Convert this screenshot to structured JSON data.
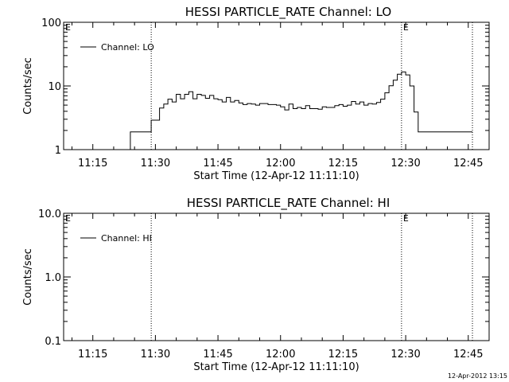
{
  "chart_data": [
    {
      "type": "line",
      "title": "HESSI PARTICLE_RATE Channel: LO",
      "xlabel": "Start Time (12-Apr-12 11:11:10)",
      "ylabel": "Counts/sec",
      "yscale": "log",
      "ylim": [
        1,
        100
      ],
      "xlim": [
        "11:08",
        "12:50"
      ],
      "x_ticks": [
        "11:15",
        "11:30",
        "11:45",
        "12:00",
        "12:15",
        "12:30",
        "12:45"
      ],
      "y_ticks": [
        "1",
        "10",
        "100"
      ],
      "grid": false,
      "legend_position": "top-left",
      "vlines": [
        "11:29",
        "12:29",
        "12:46"
      ],
      "vline_labels": [
        {
          "x": "11:08",
          "label": "E"
        },
        {
          "x": "12:29",
          "label": "E"
        }
      ],
      "series": [
        {
          "name": "Channel: LO",
          "x": [
            "11:24",
            "11:24",
            "11:25",
            "11:26",
            "11:27",
            "11:28",
            "11:29",
            "11:29",
            "11:30",
            "11:31",
            "11:32",
            "11:33",
            "11:34",
            "11:35",
            "11:36",
            "11:37",
            "11:38",
            "11:39",
            "11:40",
            "11:41",
            "11:42",
            "11:43",
            "11:44",
            "11:45",
            "11:46",
            "11:47",
            "11:48",
            "11:49",
            "11:50",
            "11:51",
            "11:52",
            "11:53",
            "11:54",
            "11:55",
            "11:56",
            "11:57",
            "11:58",
            "11:59",
            "12:00",
            "12:01",
            "12:02",
            "12:03",
            "12:04",
            "12:05",
            "12:06",
            "12:07",
            "12:08",
            "12:09",
            "12:10",
            "12:11",
            "12:12",
            "12:13",
            "12:14",
            "12:15",
            "12:16",
            "12:17",
            "12:18",
            "12:19",
            "12:20",
            "12:21",
            "12:22",
            "12:23",
            "12:24",
            "12:25",
            "12:26",
            "12:27",
            "12:28",
            "12:29",
            "12:30",
            "12:31",
            "12:32",
            "12:33",
            "12:34",
            "12:35",
            "12:36",
            "12:37",
            "12:38",
            "12:39",
            "12:40",
            "12:41",
            "12:42",
            "12:43",
            "12:44",
            "12:45",
            "12:46"
          ],
          "y": [
            1,
            1.9,
            1.9,
            1.9,
            1.9,
            1.9,
            1.9,
            2.9,
            2.9,
            4.5,
            5.2,
            6.2,
            5.6,
            7.4,
            6.3,
            7.4,
            8.1,
            6.3,
            7.4,
            7.1,
            6.4,
            7.1,
            6.3,
            6.1,
            5.6,
            6.6,
            5.6,
            5.9,
            5.4,
            5.1,
            5.3,
            5.2,
            5.0,
            5.3,
            5.3,
            5.1,
            5.1,
            5.0,
            4.7,
            4.2,
            5.2,
            4.4,
            4.6,
            4.4,
            4.9,
            4.4,
            4.4,
            4.3,
            4.7,
            4.6,
            4.6,
            4.9,
            5.1,
            4.8,
            5.0,
            5.7,
            5.2,
            5.6,
            5.0,
            5.3,
            5.2,
            5.5,
            6.2,
            7.8,
            10.1,
            12.3,
            15.3,
            16.6,
            14.9,
            10.0,
            3.9,
            1.9,
            1.9,
            1.9,
            1.9,
            1.9,
            1.9,
            1.9,
            1.9,
            1.9,
            1.9,
            1.9,
            1.9,
            1.9,
            1.9
          ]
        }
      ]
    },
    {
      "type": "line",
      "title": "HESSI PARTICLE_RATE Channel: HI",
      "xlabel": "Start Time (12-Apr-12 11:11:10)",
      "ylabel": "Counts/sec",
      "yscale": "log",
      "ylim": [
        0.1,
        10.0
      ],
      "xlim": [
        "11:08",
        "12:50"
      ],
      "x_ticks": [
        "11:15",
        "11:30",
        "11:45",
        "12:00",
        "12:15",
        "12:30",
        "12:45"
      ],
      "y_ticks": [
        "0.1",
        "1.0",
        "10.0"
      ],
      "grid": false,
      "legend_position": "top-left",
      "vlines": [
        "11:29",
        "12:29",
        "12:46"
      ],
      "vline_labels": [
        {
          "x": "11:08",
          "label": "E"
        },
        {
          "x": "12:29",
          "label": "E"
        }
      ],
      "series": [
        {
          "name": "Channel: HI",
          "x": [],
          "y": []
        }
      ]
    }
  ],
  "footer": {
    "timestamp": "12-Apr-2012 13:15"
  }
}
